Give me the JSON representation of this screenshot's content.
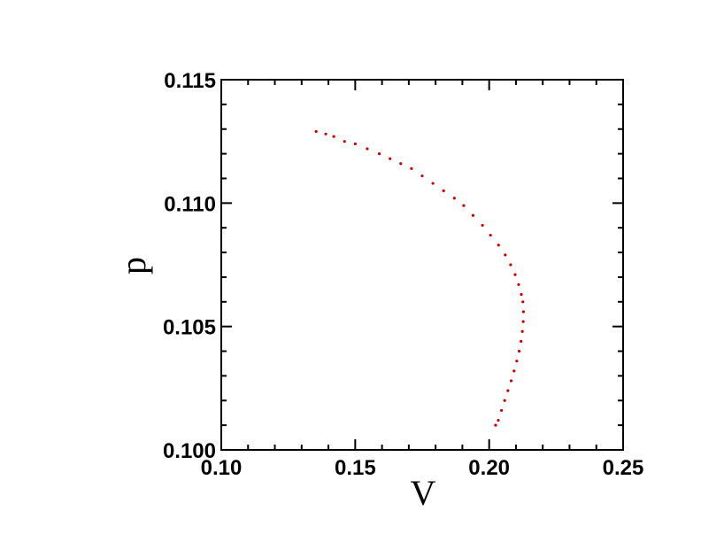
{
  "chart_data": {
    "type": "scatter",
    "title": "",
    "xlabel": "V",
    "ylabel": "p",
    "xlim": [
      0.1,
      0.25
    ],
    "ylim": [
      0.1,
      0.115
    ],
    "x_ticks": [
      0.1,
      0.15,
      0.2,
      0.25
    ],
    "x_tick_labels": [
      "0.10",
      "0.15",
      "0.20",
      "0.25"
    ],
    "y_ticks": [
      0.1,
      0.105,
      0.11,
      0.115
    ],
    "y_tick_labels": [
      "0.100",
      "0.105",
      "0.110",
      "0.115"
    ],
    "grid": false,
    "legend": "none",
    "series": [
      {
        "color": "#cc0000",
        "points": [
          [
            0.1354,
            0.1129
          ],
          [
            0.139,
            0.1128
          ],
          [
            0.142,
            0.1127
          ],
          [
            0.146,
            0.1125
          ],
          [
            0.15,
            0.1124
          ],
          [
            0.1545,
            0.1122
          ],
          [
            0.159,
            0.112
          ],
          [
            0.163,
            0.1118
          ],
          [
            0.167,
            0.1116
          ],
          [
            0.171,
            0.1114
          ],
          [
            0.175,
            0.1111
          ],
          [
            0.179,
            0.1108
          ],
          [
            0.183,
            0.1105
          ],
          [
            0.187,
            0.1102
          ],
          [
            0.1905,
            0.1099
          ],
          [
            0.194,
            0.1095
          ],
          [
            0.1975,
            0.1091
          ],
          [
            0.2005,
            0.1087
          ],
          [
            0.2035,
            0.1083
          ],
          [
            0.206,
            0.1079
          ],
          [
            0.208,
            0.1075
          ],
          [
            0.2097,
            0.1071
          ],
          [
            0.211,
            0.1067
          ],
          [
            0.212,
            0.1063
          ],
          [
            0.2126,
            0.106
          ],
          [
            0.2128,
            0.1056
          ],
          [
            0.2127,
            0.1052
          ],
          [
            0.2124,
            0.1048
          ],
          [
            0.2119,
            0.1044
          ],
          [
            0.2112,
            0.104
          ],
          [
            0.2103,
            0.1036
          ],
          [
            0.2093,
            0.1032
          ],
          [
            0.2082,
            0.1028
          ],
          [
            0.207,
            0.1024
          ],
          [
            0.2058,
            0.102
          ],
          [
            0.2046,
            0.1016
          ],
          [
            0.2034,
            0.1012
          ],
          [
            0.2024,
            0.101
          ]
        ]
      }
    ]
  }
}
